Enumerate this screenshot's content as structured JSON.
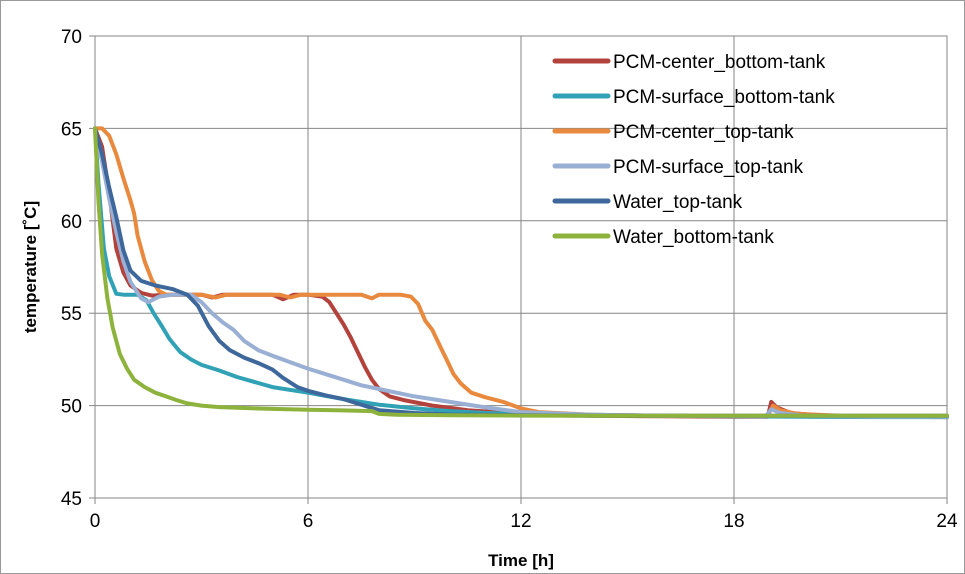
{
  "chart_data": {
    "type": "line",
    "xlabel": "Time [h]",
    "ylabel": "temperature [˚C]",
    "xlim": [
      0,
      24
    ],
    "ylim": [
      45,
      70
    ],
    "xticks": [
      0,
      6,
      12,
      18,
      24
    ],
    "yticks": [
      45,
      50,
      55,
      60,
      65,
      70
    ],
    "grid": true,
    "legend_position": "top-right",
    "series": [
      {
        "name": "PCM-center_bottom-tank",
        "color": "#b3423c",
        "points": [
          [
            0,
            65
          ],
          [
            0.2,
            64
          ],
          [
            0.4,
            61.5
          ],
          [
            0.6,
            58.5
          ],
          [
            0.8,
            57.2
          ],
          [
            1.0,
            56.5
          ],
          [
            1.3,
            56.1
          ],
          [
            1.6,
            55.95
          ],
          [
            2.0,
            56.0
          ],
          [
            2.5,
            56.0
          ],
          [
            3.0,
            56.0
          ],
          [
            3.3,
            55.85
          ],
          [
            3.6,
            56.0
          ],
          [
            4.0,
            56.0
          ],
          [
            5.0,
            56.0
          ],
          [
            5.3,
            55.75
          ],
          [
            5.6,
            56.0
          ],
          [
            6.0,
            56.0
          ],
          [
            6.4,
            55.9
          ],
          [
            6.6,
            55.6
          ],
          [
            6.8,
            55.0
          ],
          [
            7.0,
            54.4
          ],
          [
            7.2,
            53.7
          ],
          [
            7.4,
            52.9
          ],
          [
            7.6,
            52.1
          ],
          [
            7.8,
            51.4
          ],
          [
            8.0,
            50.9
          ],
          [
            8.3,
            50.5
          ],
          [
            8.7,
            50.3
          ],
          [
            9.5,
            50.0
          ],
          [
            10.5,
            49.75
          ],
          [
            12,
            49.55
          ],
          [
            14,
            49.45
          ],
          [
            16,
            49.42
          ],
          [
            18,
            49.4
          ],
          [
            18.95,
            49.4
          ],
          [
            19.05,
            50.2
          ],
          [
            19.2,
            49.9
          ],
          [
            19.6,
            49.6
          ],
          [
            20.5,
            49.45
          ],
          [
            22,
            49.4
          ],
          [
            24,
            49.38
          ]
        ]
      },
      {
        "name": "PCM-surface_bottom-tank",
        "color": "#31a2b6",
        "points": [
          [
            0,
            65
          ],
          [
            0.1,
            62
          ],
          [
            0.25,
            58.5
          ],
          [
            0.4,
            57
          ],
          [
            0.6,
            56.05
          ],
          [
            0.8,
            56.0
          ],
          [
            1.2,
            56.0
          ],
          [
            1.45,
            55.7
          ],
          [
            1.65,
            55.0
          ],
          [
            1.85,
            54.4
          ],
          [
            2.1,
            53.6
          ],
          [
            2.4,
            52.9
          ],
          [
            2.7,
            52.5
          ],
          [
            3.0,
            52.2
          ],
          [
            3.5,
            51.9
          ],
          [
            4.0,
            51.55
          ],
          [
            5.0,
            51.0
          ],
          [
            6.0,
            50.7
          ],
          [
            7.0,
            50.35
          ],
          [
            8.0,
            50.05
          ],
          [
            9.0,
            49.85
          ],
          [
            10.0,
            49.7
          ],
          [
            11,
            49.6
          ],
          [
            12,
            49.55
          ],
          [
            14,
            49.5
          ],
          [
            16,
            49.45
          ],
          [
            18,
            49.42
          ],
          [
            20,
            49.4
          ],
          [
            22,
            49.38
          ],
          [
            24,
            49.38
          ]
        ]
      },
      {
        "name": "PCM-center_top-tank",
        "color": "#e9893e",
        "points": [
          [
            0,
            65
          ],
          [
            0.2,
            65
          ],
          [
            0.4,
            64.6
          ],
          [
            0.6,
            63.6
          ],
          [
            0.8,
            62.3
          ],
          [
            1.0,
            61.1
          ],
          [
            1.1,
            60.4
          ],
          [
            1.2,
            59.2
          ],
          [
            1.4,
            57.8
          ],
          [
            1.6,
            56.8
          ],
          [
            1.8,
            56.2
          ],
          [
            2.0,
            56.0
          ],
          [
            3.0,
            56.0
          ],
          [
            3.4,
            55.85
          ],
          [
            3.7,
            56.0
          ],
          [
            4.5,
            56.0
          ],
          [
            5.2,
            56.0
          ],
          [
            5.5,
            55.85
          ],
          [
            5.8,
            56.0
          ],
          [
            7.0,
            56.0
          ],
          [
            7.5,
            56.0
          ],
          [
            7.8,
            55.8
          ],
          [
            8.0,
            56.0
          ],
          [
            8.6,
            56.0
          ],
          [
            8.9,
            55.9
          ],
          [
            9.1,
            55.5
          ],
          [
            9.3,
            54.6
          ],
          [
            9.5,
            54.1
          ],
          [
            9.7,
            53.3
          ],
          [
            9.9,
            52.5
          ],
          [
            10.1,
            51.7
          ],
          [
            10.3,
            51.2
          ],
          [
            10.6,
            50.7
          ],
          [
            11.0,
            50.45
          ],
          [
            11.5,
            50.2
          ],
          [
            12,
            49.85
          ],
          [
            12.5,
            49.65
          ],
          [
            14,
            49.5
          ],
          [
            16,
            49.45
          ],
          [
            18,
            49.45
          ],
          [
            18.95,
            49.45
          ],
          [
            19.1,
            50.0
          ],
          [
            19.3,
            49.75
          ],
          [
            19.8,
            49.55
          ],
          [
            21,
            49.45
          ],
          [
            24,
            49.45
          ]
        ]
      },
      {
        "name": "PCM-surface_top-tank",
        "color": "#9aafd4",
        "points": [
          [
            0,
            65
          ],
          [
            0.2,
            63.2
          ],
          [
            0.4,
            61.2
          ],
          [
            0.6,
            59.4
          ],
          [
            0.8,
            57.8
          ],
          [
            1.0,
            56.7
          ],
          [
            1.3,
            55.8
          ],
          [
            1.5,
            55.6
          ],
          [
            1.8,
            55.9
          ],
          [
            2.2,
            56.0
          ],
          [
            2.7,
            56.0
          ],
          [
            3.0,
            55.6
          ],
          [
            3.3,
            55.0
          ],
          [
            3.6,
            54.5
          ],
          [
            3.9,
            54.1
          ],
          [
            4.2,
            53.5
          ],
          [
            4.6,
            53.0
          ],
          [
            5.0,
            52.7
          ],
          [
            5.5,
            52.35
          ],
          [
            6.0,
            52.0
          ],
          [
            6.5,
            51.7
          ],
          [
            7.0,
            51.4
          ],
          [
            7.5,
            51.1
          ],
          [
            8.0,
            50.9
          ],
          [
            9.0,
            50.5
          ],
          [
            10.0,
            50.2
          ],
          [
            11.0,
            49.9
          ],
          [
            12,
            49.65
          ],
          [
            14,
            49.5
          ],
          [
            16,
            49.45
          ],
          [
            18,
            49.42
          ],
          [
            18.9,
            49.42
          ],
          [
            19.05,
            49.8
          ],
          [
            19.3,
            49.6
          ],
          [
            20,
            49.45
          ],
          [
            22,
            49.4
          ],
          [
            24,
            49.4
          ]
        ]
      },
      {
        "name": "Water_top-tank",
        "color": "#3e689c",
        "points": [
          [
            0,
            65
          ],
          [
            0.2,
            63.6
          ],
          [
            0.4,
            61.8
          ],
          [
            0.6,
            60.2
          ],
          [
            0.8,
            58.4
          ],
          [
            1.0,
            57.3
          ],
          [
            1.3,
            56.75
          ],
          [
            1.7,
            56.5
          ],
          [
            2.2,
            56.3
          ],
          [
            2.6,
            56.0
          ],
          [
            2.9,
            55.4
          ],
          [
            3.2,
            54.3
          ],
          [
            3.5,
            53.5
          ],
          [
            3.8,
            53.0
          ],
          [
            4.2,
            52.6
          ],
          [
            4.6,
            52.3
          ],
          [
            5.0,
            51.95
          ],
          [
            5.3,
            51.5
          ],
          [
            5.7,
            51.0
          ],
          [
            6.0,
            50.8
          ],
          [
            6.5,
            50.55
          ],
          [
            7.0,
            50.35
          ],
          [
            7.5,
            50.05
          ],
          [
            8.0,
            49.75
          ],
          [
            9.0,
            49.6
          ],
          [
            10.0,
            49.52
          ],
          [
            12,
            49.48
          ],
          [
            14,
            49.45
          ],
          [
            16,
            49.45
          ],
          [
            18,
            49.45
          ],
          [
            20,
            49.45
          ],
          [
            22,
            49.45
          ],
          [
            24,
            49.45
          ]
        ]
      },
      {
        "name": "Water_bottom-tank",
        "color": "#8db33d",
        "points": [
          [
            0,
            65
          ],
          [
            0.1,
            61
          ],
          [
            0.2,
            58.2
          ],
          [
            0.35,
            55.8
          ],
          [
            0.5,
            54.2
          ],
          [
            0.7,
            52.8
          ],
          [
            0.9,
            52.0
          ],
          [
            1.1,
            51.4
          ],
          [
            1.4,
            51.0
          ],
          [
            1.7,
            50.7
          ],
          [
            2.0,
            50.5
          ],
          [
            2.3,
            50.3
          ],
          [
            2.6,
            50.12
          ],
          [
            3.0,
            50.0
          ],
          [
            3.5,
            49.92
          ],
          [
            4.0,
            49.88
          ],
          [
            5.0,
            49.82
          ],
          [
            6.0,
            49.78
          ],
          [
            7.0,
            49.74
          ],
          [
            7.8,
            49.7
          ],
          [
            8.0,
            49.55
          ],
          [
            8.5,
            49.5
          ],
          [
            10,
            49.48
          ],
          [
            12,
            49.46
          ],
          [
            14,
            49.45
          ],
          [
            16,
            49.45
          ],
          [
            18,
            49.45
          ],
          [
            20,
            49.45
          ],
          [
            22,
            49.45
          ],
          [
            24,
            49.45
          ]
        ]
      }
    ]
  }
}
